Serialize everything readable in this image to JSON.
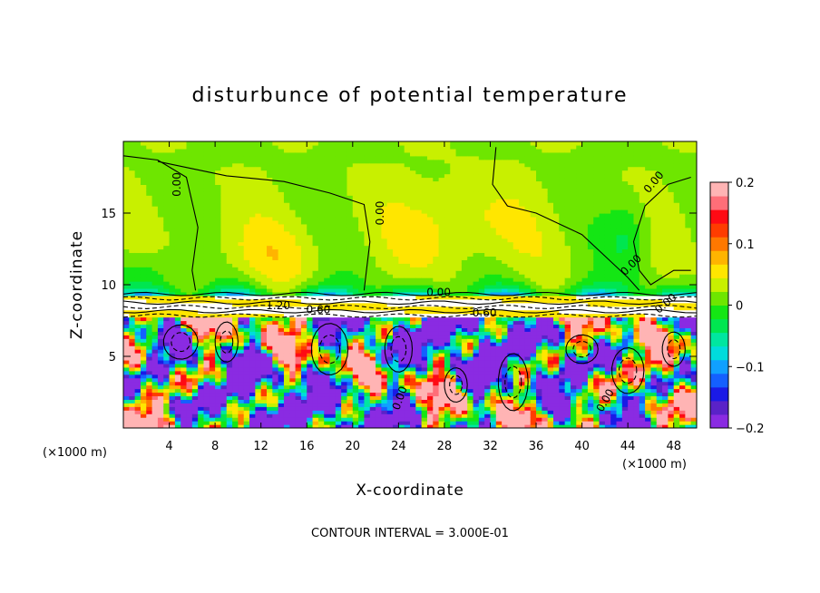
{
  "chart_data": {
    "type": "heatmap",
    "title": "disturbunce of potential temperature",
    "xlabel": "X-coordinate",
    "ylabel": "Z-coordinate",
    "x_unit_left": "(×1000 m)",
    "x_unit_right": "(×1000 m)",
    "xlim": [
      0,
      50
    ],
    "ylim": [
      0,
      20
    ],
    "x_ticks": [
      "4",
      "8",
      "12",
      "16",
      "20",
      "24",
      "28",
      "32",
      "36",
      "40",
      "44",
      "48"
    ],
    "y_ticks": [
      "5",
      "10",
      "15"
    ],
    "colorbar": {
      "range": [
        -0.2,
        0.2
      ],
      "tick_labels": [
        "0.2",
        "0.1",
        "0",
        "−0.1",
        "−0.2"
      ],
      "tick_values": [
        0.2,
        0.1,
        0,
        -0.1,
        -0.2
      ],
      "colors": [
        "#8a2be2",
        "#5a22c8",
        "#1a1ae6",
        "#1460ff",
        "#10a0ff",
        "#00dcdc",
        "#00e6a0",
        "#00e650",
        "#14e614",
        "#6ee600",
        "#c8f000",
        "#ffe600",
        "#ffb400",
        "#ff7800",
        "#ff3c00",
        "#ff0a14",
        "#ff6e78",
        "#ffb4b4"
      ]
    },
    "contour_labels": [
      "0.00",
      "0.00",
      "0.00",
      "0.00",
      "0.00",
      "1.20",
      "0.60",
      "0.60",
      "0.00",
      "0.00",
      "0.00"
    ],
    "footer": "CONTOUR INTERVAL = 3.000E-01",
    "grid": false,
    "legend": "colorbar-right"
  }
}
